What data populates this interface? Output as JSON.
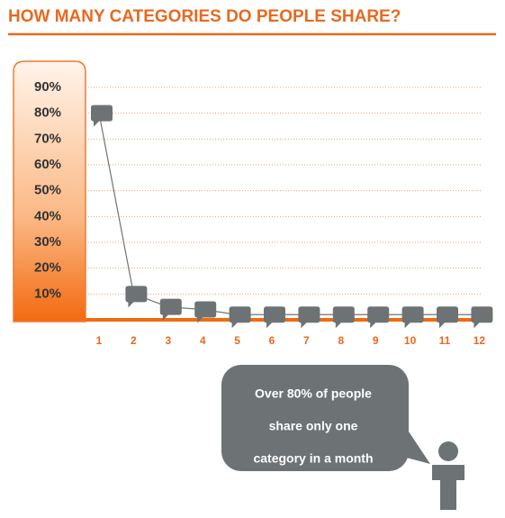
{
  "chart_data": {
    "type": "line",
    "title": "HOW MANY CATEGORIES DO PEOPLE SHARE?",
    "categories": [
      "1",
      "2",
      "3",
      "4",
      "5",
      "6",
      "7",
      "8",
      "9",
      "10",
      "11",
      "12"
    ],
    "values": [
      80,
      10,
      5,
      4,
      2,
      2,
      2,
      2,
      2,
      2,
      2,
      2
    ],
    "color": "#6d7374",
    "ylim": [
      0,
      90
    ],
    "yticks": [
      {
        "value": 10,
        "label": "10%"
      },
      {
        "value": 20,
        "label": "20%"
      },
      {
        "value": 30,
        "label": "30%"
      },
      {
        "value": 40,
        "label": "40%"
      },
      {
        "value": 50,
        "label": "50%"
      },
      {
        "value": 60,
        "label": "60%"
      },
      {
        "value": 70,
        "label": "70%"
      },
      {
        "value": 80,
        "label": "80%"
      },
      {
        "value": 90,
        "label": "90%"
      }
    ],
    "grid": true,
    "annotation": [
      "Over 80% of people",
      "share only one",
      "category in a month"
    ]
  }
}
